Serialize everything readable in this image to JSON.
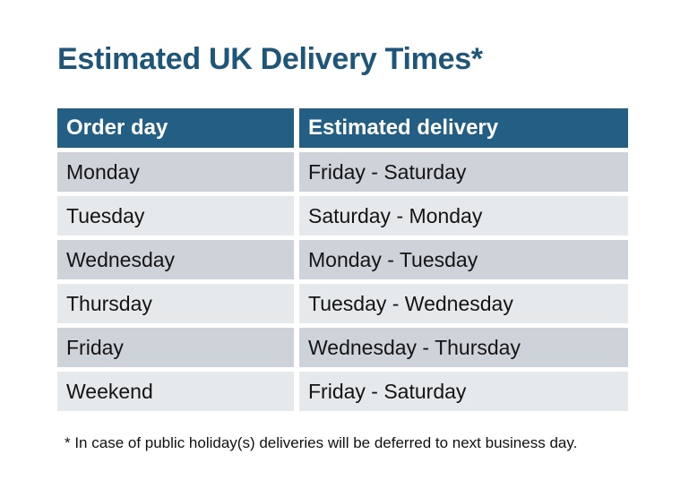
{
  "page": {
    "title": "Estimated UK Delivery Times*",
    "footnote": "* In case of public holiday(s) deliveries will be deferred to next business day."
  },
  "table": {
    "headers": [
      "Order day",
      "Estimated delivery"
    ],
    "rows": [
      [
        "Monday",
        "Friday - Saturday"
      ],
      [
        "Tuesday",
        "Saturday - Monday"
      ],
      [
        "Wednesday",
        "Monday - Tuesday"
      ],
      [
        "Thursday",
        "Tuesday - Wednesday"
      ],
      [
        "Friday",
        "Wednesday - Thursday"
      ],
      [
        "Weekend",
        "Friday - Saturday"
      ]
    ]
  },
  "colors": {
    "title_text": "#1E567A",
    "header_bg": "#235F84",
    "header_text": "#FFFFFF",
    "row_dark": "#CED2D9",
    "row_light": "#E6E9EC",
    "body_text": "#141414",
    "background": "#FFFFFF"
  }
}
